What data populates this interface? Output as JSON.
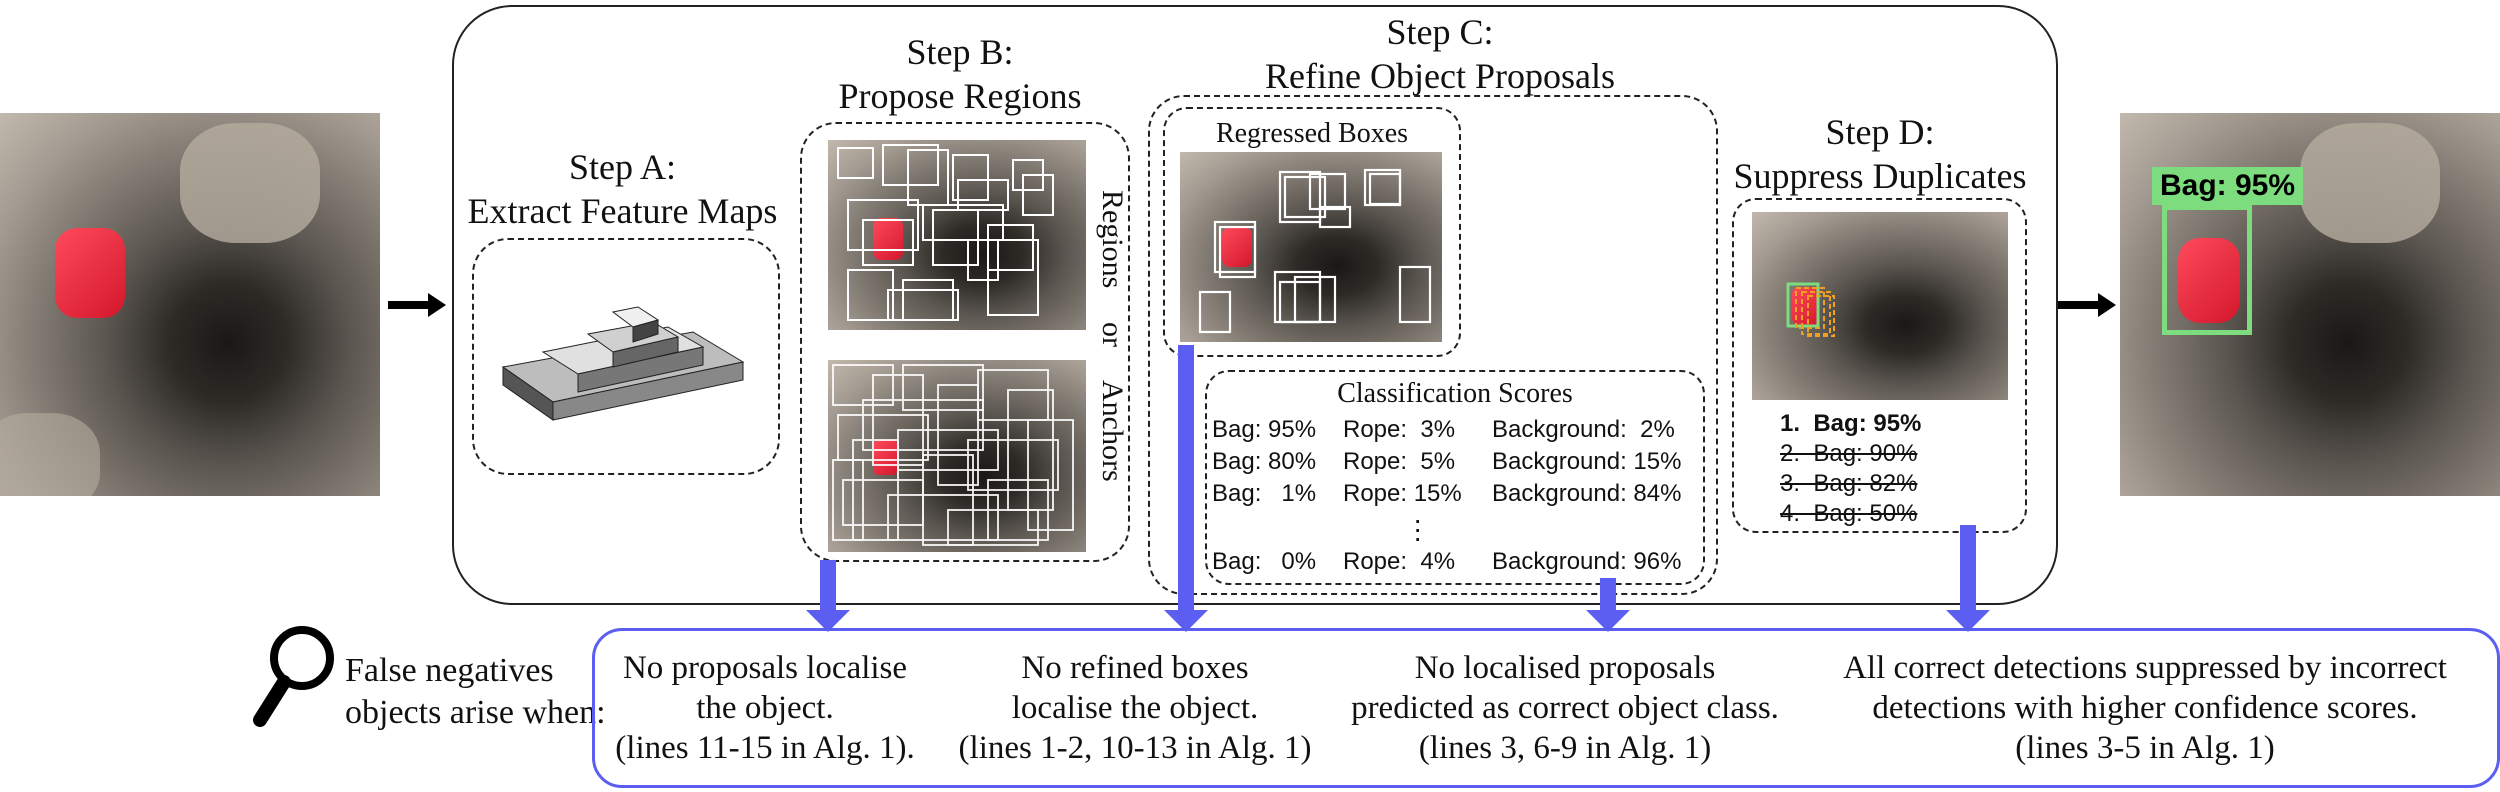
{
  "steps": {
    "a": {
      "title_line1": "Step A:",
      "title_line2": "Extract Feature Maps"
    },
    "b": {
      "title_line1": "Step B:",
      "title_line2": "Propose Regions",
      "side_regions": "Regions",
      "side_or": "or",
      "side_anchors": "Anchors"
    },
    "c": {
      "title_line1": "Step C:",
      "title_line2": "Refine Object Proposals",
      "regressed_label": "Regressed Boxes",
      "scores_title": "Classification Scores"
    },
    "d": {
      "title_line1": "Step D:",
      "title_line2": "Suppress Duplicates"
    }
  },
  "scores": [
    {
      "bag": "Bag: 95%",
      "rope": "Rope:  3%",
      "bg": "Background:  2%"
    },
    {
      "bag": "Bag: 80%",
      "rope": "Rope:  5%",
      "bg": "Background: 15%"
    },
    {
      "bag": "Bag:   1%",
      "rope": "Rope: 15%",
      "bg": "Background: 84%"
    },
    {
      "bag": "Bag:   0%",
      "rope": "Rope:  4%",
      "bg": "Background: 96%"
    }
  ],
  "ranked": [
    {
      "label": "1.  Bag: 95%",
      "suppressed": false
    },
    {
      "label": "2.  Bag: 90%",
      "suppressed": true
    },
    {
      "label": "3.  Bag: 82%",
      "suppressed": true
    },
    {
      "label": "4.  Bag: 50%",
      "suppressed": true
    }
  ],
  "output_label": "Bag: 95%",
  "false_negatives": {
    "line1": "False negatives",
    "line2": "objects arise when:"
  },
  "causes": [
    {
      "line1": "No proposals localise",
      "line2": "the object.",
      "line3": "(lines 11-15 in Alg. 1)."
    },
    {
      "line1": "No refined boxes",
      "line2": "localise the object.",
      "line3": "(lines 1-2, 10-13 in Alg. 1)"
    },
    {
      "line1": "No localised proposals",
      "line2": "predicted as correct object class.",
      "line3": "(lines 3, 6-9 in Alg. 1)"
    },
    {
      "line1": "All correct detections suppressed by incorrect",
      "line2": "detections with higher confidence scores.",
      "line3": "(lines 3-5 in Alg. 1)"
    }
  ],
  "colors": {
    "arrow": "#5b5ef0",
    "panel_border": "#5b5ef0",
    "nms_box": "#7ddc7d"
  }
}
